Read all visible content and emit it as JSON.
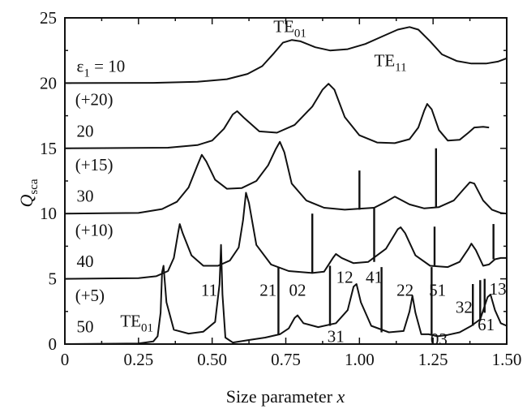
{
  "chart_data": {
    "type": "line",
    "xlabel": "Size parameter",
    "xlabel_var": "x",
    "ylabel": "Q",
    "ylabel_sub": "sca",
    "xlim": [
      0,
      1.5
    ],
    "ylim": [
      0,
      25
    ],
    "xticks": [
      "0",
      "0.25",
      "0.50",
      "0.75",
      "1.00",
      "1.25",
      "1.50"
    ],
    "yticks": [
      "0",
      "5",
      "10",
      "15",
      "20",
      "25"
    ],
    "series": [
      {
        "name": "ε1 = 10",
        "offset": 20,
        "offset_label": "(+20)",
        "points": [
          [
            0,
            20
          ],
          [
            0.3,
            20.02
          ],
          [
            0.45,
            20.1
          ],
          [
            0.55,
            20.3
          ],
          [
            0.62,
            20.7
          ],
          [
            0.67,
            21.3
          ],
          [
            0.71,
            22.3
          ],
          [
            0.74,
            23.1
          ],
          [
            0.77,
            23.3
          ],
          [
            0.8,
            23.2
          ],
          [
            0.85,
            22.75
          ],
          [
            0.9,
            22.5
          ],
          [
            0.96,
            22.6
          ],
          [
            1.02,
            23.0
          ],
          [
            1.08,
            23.6
          ],
          [
            1.13,
            24.1
          ],
          [
            1.17,
            24.3
          ],
          [
            1.2,
            24.1
          ],
          [
            1.24,
            23.2
          ],
          [
            1.28,
            22.2
          ],
          [
            1.33,
            21.7
          ],
          [
            1.38,
            21.5
          ],
          [
            1.43,
            21.5
          ],
          [
            1.47,
            21.65
          ],
          [
            1.5,
            21.9
          ]
        ],
        "spikes": []
      },
      {
        "name": "20",
        "offset": 15,
        "offset_label": "(+15)",
        "points": [
          [
            0,
            15
          ],
          [
            0.35,
            15.05
          ],
          [
            0.45,
            15.25
          ],
          [
            0.5,
            15.6
          ],
          [
            0.54,
            16.5
          ],
          [
            0.57,
            17.6
          ],
          [
            0.585,
            17.85
          ],
          [
            0.61,
            17.3
          ],
          [
            0.66,
            16.3
          ],
          [
            0.72,
            16.2
          ],
          [
            0.78,
            16.8
          ],
          [
            0.84,
            18.2
          ],
          [
            0.875,
            19.5
          ],
          [
            0.895,
            19.95
          ],
          [
            0.915,
            19.5
          ],
          [
            0.95,
            17.4
          ],
          [
            1.0,
            16.0
          ],
          [
            1.06,
            15.45
          ],
          [
            1.12,
            15.4
          ],
          [
            1.17,
            15.7
          ],
          [
            1.2,
            16.6
          ],
          [
            1.22,
            17.9
          ],
          [
            1.23,
            18.4
          ],
          [
            1.245,
            18.0
          ],
          [
            1.27,
            16.4
          ],
          [
            1.3,
            15.6
          ],
          [
            1.34,
            15.65
          ],
          [
            1.37,
            16.2
          ],
          [
            1.39,
            16.6
          ],
          [
            1.42,
            16.65
          ],
          [
            1.44,
            16.6
          ]
        ],
        "spikes": []
      },
      {
        "name": "30",
        "offset": 10,
        "offset_label": "(+10)",
        "points": [
          [
            0,
            10
          ],
          [
            0.25,
            10.05
          ],
          [
            0.33,
            10.35
          ],
          [
            0.38,
            10.9
          ],
          [
            0.42,
            12.0
          ],
          [
            0.45,
            13.7
          ],
          [
            0.465,
            14.5
          ],
          [
            0.48,
            14.0
          ],
          [
            0.51,
            12.6
          ],
          [
            0.55,
            11.9
          ],
          [
            0.6,
            11.95
          ],
          [
            0.65,
            12.5
          ],
          [
            0.69,
            13.7
          ],
          [
            0.715,
            14.9
          ],
          [
            0.73,
            15.5
          ],
          [
            0.745,
            14.7
          ],
          [
            0.77,
            12.3
          ],
          [
            0.82,
            11.0
          ],
          [
            0.88,
            10.45
          ],
          [
            0.95,
            10.3
          ],
          [
            1.05,
            10.45
          ],
          [
            1.09,
            10.9
          ],
          [
            1.12,
            11.3
          ],
          [
            1.17,
            10.7
          ],
          [
            1.22,
            10.4
          ],
          [
            1.27,
            10.5
          ],
          [
            1.32,
            11.0
          ],
          [
            1.355,
            11.9
          ],
          [
            1.375,
            12.4
          ],
          [
            1.39,
            12.3
          ],
          [
            1.42,
            11.0
          ],
          [
            1.45,
            10.3
          ],
          [
            1.48,
            10.05
          ],
          [
            1.5,
            10.0
          ]
        ],
        "spikes": [
          [
            1.0,
            10.3,
            13.3
          ],
          [
            1.26,
            10.5,
            15.0
          ]
        ]
      },
      {
        "name": "40",
        "offset": 5,
        "offset_label": "(+5)",
        "points": [
          [
            0,
            5
          ],
          [
            0.25,
            5.05
          ],
          [
            0.31,
            5.2
          ],
          [
            0.35,
            5.6
          ],
          [
            0.37,
            6.6
          ],
          [
            0.385,
            8.6
          ],
          [
            0.39,
            9.2
          ],
          [
            0.4,
            8.5
          ],
          [
            0.43,
            6.8
          ],
          [
            0.47,
            6.0
          ],
          [
            0.52,
            6.0
          ],
          [
            0.56,
            6.4
          ],
          [
            0.59,
            7.4
          ],
          [
            0.605,
            9.5
          ],
          [
            0.615,
            11.6
          ],
          [
            0.625,
            10.8
          ],
          [
            0.65,
            7.6
          ],
          [
            0.7,
            6.1
          ],
          [
            0.76,
            5.6
          ],
          [
            0.84,
            5.45
          ],
          [
            0.88,
            5.55
          ],
          [
            0.91,
            6.6
          ],
          [
            0.92,
            6.9
          ],
          [
            0.94,
            6.6
          ],
          [
            0.98,
            6.2
          ],
          [
            1.03,
            6.3
          ],
          [
            1.09,
            7.3
          ],
          [
            1.13,
            8.8
          ],
          [
            1.14,
            8.95
          ],
          [
            1.155,
            8.5
          ],
          [
            1.19,
            6.8
          ],
          [
            1.24,
            6.0
          ],
          [
            1.3,
            5.9
          ],
          [
            1.34,
            6.3
          ],
          [
            1.37,
            7.3
          ],
          [
            1.38,
            7.7
          ],
          [
            1.395,
            7.2
          ],
          [
            1.42,
            6.0
          ],
          [
            1.44,
            6.1
          ],
          [
            1.46,
            6.5
          ],
          [
            1.48,
            6.6
          ],
          [
            1.5,
            6.6
          ]
        ],
        "spikes": [
          [
            0.84,
            5.45,
            10.0
          ],
          [
            1.05,
            6.3,
            10.5
          ],
          [
            1.255,
            5.95,
            9.0
          ],
          [
            1.455,
            6.5,
            9.2
          ]
        ]
      },
      {
        "name": "50",
        "offset": 0,
        "offset_label": "",
        "points": [
          [
            0,
            0
          ],
          [
            0.25,
            0.05
          ],
          [
            0.3,
            0.2
          ],
          [
            0.315,
            0.6
          ],
          [
            0.325,
            2.4
          ],
          [
            0.33,
            5.5
          ],
          [
            0.335,
            6.0
          ],
          [
            0.345,
            3.2
          ],
          [
            0.37,
            1.1
          ],
          [
            0.42,
            0.8
          ],
          [
            0.47,
            0.95
          ],
          [
            0.51,
            1.7
          ],
          [
            0.525,
            4.6
          ],
          [
            0.53,
            7.6
          ],
          [
            0.535,
            3.8
          ],
          [
            0.545,
            0.5
          ],
          [
            0.57,
            0.12
          ],
          [
            0.62,
            0.3
          ],
          [
            0.68,
            0.5
          ],
          [
            0.73,
            0.75
          ],
          [
            0.76,
            1.2
          ],
          [
            0.78,
            2.0
          ],
          [
            0.79,
            2.2
          ],
          [
            0.81,
            1.6
          ],
          [
            0.86,
            1.3
          ],
          [
            0.92,
            1.6
          ],
          [
            0.96,
            2.6
          ],
          [
            0.98,
            4.4
          ],
          [
            0.99,
            4.6
          ],
          [
            1.005,
            3.2
          ],
          [
            1.04,
            1.4
          ],
          [
            1.1,
            0.9
          ],
          [
            1.15,
            1.0
          ],
          [
            1.17,
            2.5
          ],
          [
            1.18,
            3.7
          ],
          [
            1.19,
            2.4
          ],
          [
            1.21,
            0.75
          ],
          [
            1.235,
            0.75
          ],
          [
            1.265,
            0.6
          ],
          [
            1.3,
            0.7
          ],
          [
            1.34,
            0.9
          ],
          [
            1.38,
            1.4
          ],
          [
            1.41,
            1.9
          ],
          [
            1.435,
            3.6
          ],
          [
            1.445,
            3.8
          ],
          [
            1.46,
            2.6
          ],
          [
            1.48,
            1.6
          ],
          [
            1.5,
            1.4
          ]
        ],
        "spikes": [
          [
            0.725,
            0.7,
            5.9
          ],
          [
            0.9,
            1.4,
            6.0
          ],
          [
            1.075,
            0.9,
            5.9
          ],
          [
            1.245,
            0.7,
            5.9
          ],
          [
            1.385,
            1.4,
            4.6
          ],
          [
            1.41,
            1.8,
            4.9
          ],
          [
            1.425,
            2.4,
            5.0
          ]
        ]
      }
    ],
    "annotations": [
      {
        "text": "TE",
        "sub": "01",
        "x": 0.82,
        "y": 23.9,
        "anchor": "end"
      },
      {
        "text": "TE",
        "sub": "11",
        "x": 1.05,
        "y": 21.3,
        "anchor": "start"
      },
      {
        "text": "ε",
        "sub": "1",
        "text2": " = 10",
        "x": 0.04,
        "y": 20.85,
        "anchor": "start"
      },
      {
        "text": "TE",
        "sub": "01",
        "x": 0.3,
        "y": 1.35,
        "anchor": "end"
      },
      {
        "text": "11",
        "x": 0.49,
        "y": 3.7,
        "anchor": "middle"
      },
      {
        "text": "21",
        "x": 0.69,
        "y": 3.7,
        "anchor": "middle"
      },
      {
        "text": "02",
        "x": 0.79,
        "y": 3.7,
        "anchor": "middle"
      },
      {
        "text": "12",
        "x": 0.95,
        "y": 4.7,
        "anchor": "middle"
      },
      {
        "text": "41",
        "x": 1.05,
        "y": 4.7,
        "anchor": "middle"
      },
      {
        "text": "22",
        "x": 1.155,
        "y": 3.7,
        "anchor": "middle"
      },
      {
        "text": "51",
        "x": 1.265,
        "y": 3.7,
        "anchor": "middle"
      },
      {
        "text": "32",
        "x": 1.355,
        "y": 2.4,
        "anchor": "middle"
      },
      {
        "text": "13",
        "x": 1.47,
        "y": 3.8,
        "anchor": "middle"
      },
      {
        "text": "31",
        "x": 0.92,
        "y": 0.15,
        "anchor": "middle"
      },
      {
        "text": "03",
        "x": 1.27,
        "y": -0.05,
        "anchor": "middle"
      },
      {
        "text": "61",
        "x": 1.43,
        "y": 1.05,
        "anchor": "middle"
      }
    ],
    "curve_labels": [
      {
        "text": "20",
        "x": 0.04,
        "y": 15.9
      },
      {
        "text": "30",
        "x": 0.04,
        "y": 10.9
      },
      {
        "text": "40",
        "x": 0.04,
        "y": 5.9
      },
      {
        "text": "50",
        "x": 0.04,
        "y": 0.9
      }
    ],
    "offset_labels": [
      {
        "text": "(+20)",
        "x": 0.035,
        "y": 18.3
      },
      {
        "text": "(+15)",
        "x": 0.035,
        "y": 13.3
      },
      {
        "text": "(+10)",
        "x": 0.035,
        "y": 8.3
      },
      {
        "text": "(+5)",
        "x": 0.035,
        "y": 3.3
      }
    ]
  }
}
